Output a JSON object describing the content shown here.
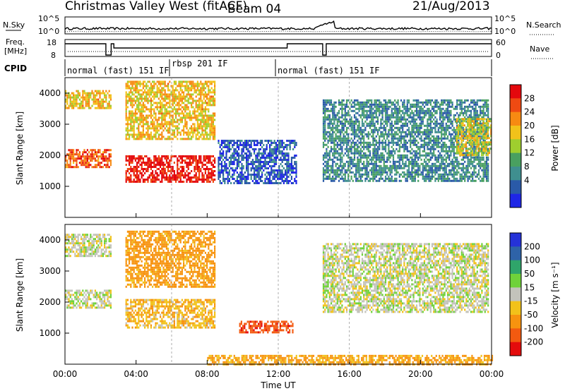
{
  "header": {
    "site": "Christmas Valley West (fitACF)",
    "beam": "Beam 04",
    "date": "21/Aug/2013"
  },
  "top_panels": {
    "nsky_label": "N.Sky",
    "nsky_ticks": [
      "10^5",
      "10^0"
    ],
    "nsearch_label": "N.Search",
    "nsearch_ticks": [
      "10^5",
      "10^0"
    ],
    "freq_label_1": "Freq.",
    "freq_label_2": "[MHz]",
    "freq_ticks": [
      "18",
      "8"
    ],
    "nave_label": "Nave",
    "nave_ticks": [
      "60",
      "0"
    ],
    "cpid_label": "CPID",
    "cpid_modes": [
      "normal (fast) 151 IF",
      "rbsp 201 IF",
      "normal (fast) 151 IF"
    ]
  },
  "axes": {
    "x_label": "Time UT",
    "x_ticks": [
      "00:00",
      "04:00",
      "08:00",
      "12:00",
      "16:00",
      "20:00",
      "00:00"
    ],
    "y_label": "Slant Range [km]",
    "y_ticks": [
      "1000",
      "2000",
      "3000",
      "4000"
    ]
  },
  "power_scale": {
    "label": "Power [dB]",
    "ticks": [
      "4",
      "8",
      "12",
      "16",
      "20",
      "24",
      "28"
    ],
    "colors": [
      "#1e26e6",
      "#2a5aa8",
      "#3f8f8f",
      "#49a060",
      "#9fce2e",
      "#f2c21a",
      "#f78a12",
      "#ef4a12",
      "#e4080d"
    ]
  },
  "velocity_scale": {
    "label": "Velocity [m s⁻¹]",
    "ticks": [
      "200",
      "100",
      "50",
      "15",
      "-15",
      "-50",
      "-100",
      "-200"
    ],
    "colors": [
      "#2532d8",
      "#2e63a8",
      "#2fa56a",
      "#6fd23a",
      "#c3c3bb",
      "#f2c21a",
      "#f7930f",
      "#f35a10",
      "#e40c0c"
    ]
  },
  "chart_data": [
    {
      "type": "heatmap",
      "name": "power",
      "xlabel": "Time UT",
      "ylabel": "Slant Range [km]",
      "xlim_hours": [
        0,
        24
      ],
      "ylim_km": [
        0,
        4500
      ],
      "colorbar": {
        "label": "Power [dB]",
        "range": [
          0,
          32
        ]
      },
      "regions": [
        {
          "t": [
            0,
            2.6
          ],
          "range_km": [
            1600,
            2200
          ],
          "value_db": 26
        },
        {
          "t": [
            0,
            2.6
          ],
          "range_km": [
            3500,
            4100
          ],
          "value_db": 20
        },
        {
          "t": [
            3.4,
            8.4
          ],
          "range_km": [
            1150,
            2000
          ],
          "value_db": 30
        },
        {
          "t": [
            3.4,
            8.4
          ],
          "range_km": [
            2500,
            4400
          ],
          "value_db": 20
        },
        {
          "t": [
            8.6,
            13.0
          ],
          "range_km": [
            1100,
            2500
          ],
          "value_db": 5
        },
        {
          "t": [
            14.5,
            23.8
          ],
          "range_km": [
            1200,
            3800
          ],
          "value_db": 9
        },
        {
          "t": [
            22.0,
            24.0
          ],
          "range_km": [
            2000,
            3200
          ],
          "value_db": 18
        }
      ]
    },
    {
      "type": "heatmap",
      "name": "velocity",
      "xlabel": "Time UT",
      "ylabel": "Slant Range [km]",
      "xlim_hours": [
        0,
        24
      ],
      "ylim_km": [
        0,
        4500
      ],
      "colorbar": {
        "label": "Velocity [m s⁻¹]",
        "range": [
          -250,
          250
        ]
      },
      "regions": [
        {
          "t": [
            0,
            2.6
          ],
          "range_km": [
            1800,
            2400
          ],
          "value_ms": 0
        },
        {
          "t": [
            0,
            2.6
          ],
          "range_km": [
            3500,
            4200
          ],
          "value_ms": 0
        },
        {
          "t": [
            3.4,
            8.4
          ],
          "range_km": [
            1200,
            2100
          ],
          "value_ms": -40
        },
        {
          "t": [
            3.4,
            8.4
          ],
          "range_km": [
            2500,
            4300
          ],
          "value_ms": -70
        },
        {
          "t": [
            9.8,
            12.8
          ],
          "range_km": [
            1000,
            1400
          ],
          "value_ms": -180
        },
        {
          "t": [
            14.5,
            23.8
          ],
          "range_km": [
            1700,
            3900
          ],
          "value_ms": 0
        },
        {
          "t": [
            8.0,
            24.0
          ],
          "range_km": [
            0,
            300
          ],
          "value_ms": -60
        }
      ]
    }
  ]
}
